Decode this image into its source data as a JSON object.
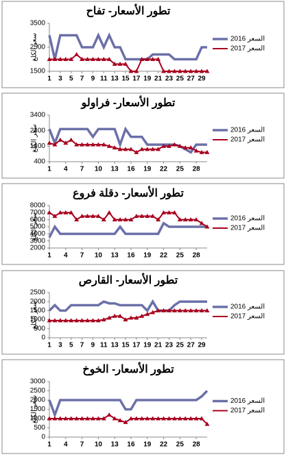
{
  "chart_data": [
    {
      "type": "line",
      "title": "تطور الأسعار- تفاح",
      "y_label": "سعر الكلغ",
      "x": [
        1,
        2,
        3,
        4,
        5,
        6,
        7,
        8,
        9,
        10,
        11,
        12,
        13,
        14,
        15,
        16,
        17,
        18,
        19,
        20,
        21,
        22,
        23,
        24,
        25,
        26,
        27,
        28,
        29,
        30
      ],
      "xlim": [
        1,
        30
      ],
      "xticks": [
        1,
        3,
        5,
        7,
        9,
        11,
        13,
        15,
        17,
        19,
        21,
        23,
        25,
        27,
        29
      ],
      "ylim": [
        1500,
        3500
      ],
      "yticks": [
        1500,
        2500,
        3500
      ],
      "series": [
        {
          "name": "السعر 2016",
          "color": "#6b70a8",
          "values": [
            3000,
            2000,
            3000,
            3000,
            3000,
            3000,
            2500,
            2500,
            2500,
            3000,
            2500,
            3000,
            2500,
            2500,
            2000,
            2000,
            2000,
            2000,
            2000,
            2200,
            2200,
            2200,
            2200,
            2000,
            2000,
            2000,
            2000,
            2000,
            2500,
            2500
          ]
        },
        {
          "name": "السعر 2017",
          "color": "#a8001e",
          "marker": "triangle",
          "values": [
            2000,
            2000,
            2000,
            2000,
            2000,
            2200,
            2000,
            2000,
            2000,
            2000,
            2000,
            2000,
            1800,
            1800,
            1800,
            1500,
            1500,
            2000,
            2000,
            2000,
            2000,
            1500,
            1500,
            1500,
            1500,
            1500,
            1500,
            1500,
            1500,
            1500
          ]
        }
      ]
    },
    {
      "type": "line",
      "title": "تطور الأسعار- فراولو",
      "y_label": "سعر الكلغ",
      "x": [
        1,
        2,
        3,
        4,
        5,
        6,
        7,
        8,
        9,
        10,
        11,
        12,
        13,
        14,
        15,
        16,
        17,
        18,
        19,
        20,
        21,
        22,
        23,
        24,
        25,
        26,
        27,
        28,
        29,
        30
      ],
      "xlim": [
        1,
        30
      ],
      "xticks": [
        1,
        4,
        7,
        10,
        13,
        16,
        19,
        22,
        25,
        28
      ],
      "ylim": [
        400,
        3400
      ],
      "yticks": [
        400,
        1400,
        2400,
        3400
      ],
      "series": [
        {
          "name": "السعر 2016",
          "color": "#6b70a8",
          "values": [
            2500,
            1600,
            2500,
            2500,
            2500,
            2500,
            2500,
            2500,
            2000,
            2500,
            2500,
            2500,
            2500,
            1500,
            2500,
            2000,
            2000,
            2000,
            1500,
            1500,
            1500,
            1500,
            1500,
            1500,
            1400,
            1200,
            1000,
            1500,
            1500,
            1500
          ]
        },
        {
          "name": "السعر 2017",
          "color": "#a8001e",
          "marker": "triangle",
          "values": [
            1600,
            1500,
            1800,
            1600,
            1800,
            1500,
            1500,
            1500,
            1500,
            1500,
            1500,
            1400,
            1300,
            1200,
            1200,
            1200,
            1000,
            1200,
            1200,
            1200,
            1200,
            1400,
            1400,
            1500,
            1400,
            1300,
            1300,
            1100,
            1000,
            1000
          ]
        }
      ]
    },
    {
      "type": "line",
      "title": "تطور الأسعار- دقلة فروع",
      "y_label": "سعر الكلغ",
      "x": [
        1,
        2,
        3,
        4,
        5,
        6,
        7,
        8,
        9,
        10,
        11,
        12,
        13,
        14,
        15,
        16,
        17,
        18,
        19,
        20,
        21,
        22,
        23,
        24,
        25,
        26,
        27,
        28,
        29,
        30
      ],
      "xlim": [
        1,
        30
      ],
      "xticks": [
        1,
        4,
        7,
        10,
        13,
        16,
        19,
        22,
        25,
        28
      ],
      "ylim": [
        2000,
        8000
      ],
      "yticks": [
        2000,
        3000,
        4000,
        5000,
        6000,
        7000,
        8000
      ],
      "series": [
        {
          "name": "السعر 2016",
          "color": "#6b70a8",
          "values": [
            3500,
            5000,
            4000,
            4000,
            4000,
            4000,
            4000,
            4000,
            4000,
            4000,
            4000,
            4000,
            4000,
            5000,
            4000,
            4000,
            4000,
            4000,
            4000,
            4000,
            4000,
            5500,
            5000,
            5000,
            5000,
            5000,
            5000,
            5000,
            5000,
            5000
          ]
        },
        {
          "name": "السعر 2017",
          "color": "#a8001e",
          "marker": "triangle",
          "values": [
            7000,
            6500,
            7000,
            7000,
            7000,
            6000,
            6500,
            6500,
            6500,
            6500,
            6000,
            7000,
            6000,
            6000,
            6000,
            6000,
            6500,
            6500,
            6500,
            6500,
            6000,
            7000,
            7000,
            7000,
            6000,
            6000,
            6000,
            6000,
            5500,
            5000
          ]
        }
      ]
    },
    {
      "type": "line",
      "title": "تطور الأسعار- القارص",
      "y_label": "سعر الكلغ",
      "x": [
        1,
        2,
        3,
        4,
        5,
        6,
        7,
        8,
        9,
        10,
        11,
        12,
        13,
        14,
        15,
        16,
        17,
        18,
        19,
        20,
        21,
        22,
        23,
        24,
        25,
        26,
        27,
        28,
        29,
        30
      ],
      "xlim": [
        1,
        30
      ],
      "xticks": [
        1,
        3,
        5,
        7,
        9,
        11,
        13,
        15,
        17,
        19,
        21,
        23,
        25,
        27,
        29
      ],
      "ylim": [
        0,
        2500
      ],
      "yticks": [
        0,
        500,
        1000,
        1500,
        2000,
        2500
      ],
      "series": [
        {
          "name": "السعر 2016",
          "color": "#6b70a8",
          "values": [
            1500,
            1800,
            1500,
            1500,
            1800,
            1800,
            1800,
            1800,
            1800,
            1800,
            2000,
            1900,
            1900,
            1800,
            1800,
            1800,
            1800,
            1800,
            1500,
            2000,
            1500,
            1500,
            1500,
            1800,
            2000,
            2000,
            2000,
            2000,
            2000,
            2000
          ]
        },
        {
          "name": "السعر 2017",
          "color": "#a8001e",
          "marker": "triangle",
          "values": [
            950,
            950,
            950,
            950,
            950,
            950,
            950,
            950,
            950,
            950,
            1000,
            1100,
            1200,
            1200,
            1000,
            1100,
            1100,
            1200,
            1300,
            1400,
            1500,
            1500,
            1500,
            1500,
            1500,
            1500,
            1500,
            1500,
            1500,
            1500
          ]
        }
      ]
    },
    {
      "type": "line",
      "title": "تطور الأسعار- الخوخ",
      "y_label": "سعر الكلغ",
      "x": [
        1,
        2,
        3,
        4,
        5,
        6,
        7,
        8,
        9,
        10,
        11,
        12,
        13,
        14,
        15,
        16,
        17,
        18,
        19,
        20,
        21,
        22,
        23,
        24,
        25,
        26,
        27,
        28,
        29,
        30
      ],
      "xlim": [
        1,
        30
      ],
      "xticks": [
        1,
        4,
        7,
        10,
        13,
        16,
        19,
        22,
        25,
        28
      ],
      "ylim": [
        0,
        3000
      ],
      "yticks": [
        0,
        500,
        1000,
        1500,
        2000,
        2500,
        3000
      ],
      "series": [
        {
          "name": "السعر 2016",
          "color": "#6b70a8",
          "values": [
            2000,
            1200,
            2000,
            2000,
            2000,
            2000,
            2000,
            2000,
            2000,
            2000,
            2000,
            2000,
            2000,
            2000,
            1500,
            1500,
            2000,
            2000,
            2000,
            2000,
            2000,
            2000,
            2000,
            2000,
            2000,
            2000,
            2000,
            2000,
            2200,
            2500
          ]
        },
        {
          "name": "السعر 2017",
          "color": "#a8001e",
          "marker": "triangle",
          "values": [
            1000,
            1000,
            1000,
            1000,
            1000,
            1000,
            1000,
            1000,
            1000,
            1000,
            1000,
            1200,
            1000,
            900,
            800,
            1000,
            1000,
            1000,
            1000,
            1000,
            1000,
            1000,
            1000,
            1000,
            1000,
            1000,
            1000,
            1000,
            1000,
            700
          ]
        }
      ]
    }
  ]
}
